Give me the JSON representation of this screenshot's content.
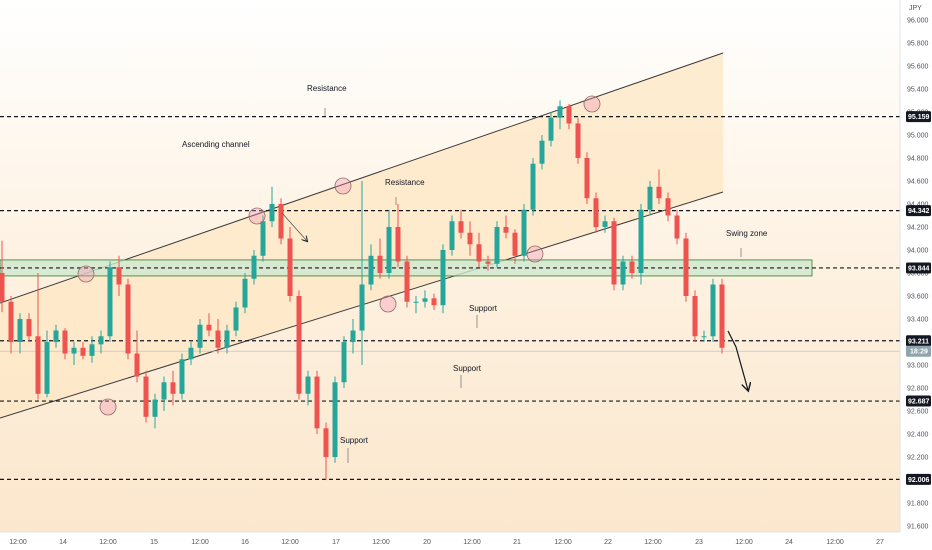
{
  "chart_data": {
    "type": "candlestick",
    "currency": "JPY",
    "ylim": [
      91.5,
      96.1
    ],
    "y_ticks": [
      "96.000",
      "95.800",
      "95.600",
      "95.400",
      "95.200",
      "95.000",
      "94.800",
      "94.600",
      "94.400",
      "94.200",
      "94.000",
      "93.800",
      "93.600",
      "93.400",
      "93.200",
      "93.000",
      "92.800",
      "92.600",
      "92.400",
      "92.200",
      "92.000",
      "91.800",
      "91.600"
    ],
    "x_ticks": [
      "12:00",
      "14",
      "12:00",
      "15",
      "12:00",
      "16",
      "12:00",
      "17",
      "12:00",
      "20",
      "12:00",
      "21",
      "12:00",
      "22",
      "12:00",
      "23",
      "12:00",
      "24",
      "12:00",
      "27"
    ],
    "levels": [
      {
        "value": 95.159,
        "label": "95.159",
        "annotation": "Resistance"
      },
      {
        "value": 94.342,
        "label": "94.342",
        "annotation": "Resistance"
      },
      {
        "value": 93.844,
        "label": "93.844",
        "annotation": "Swing zone"
      },
      {
        "value": 93.211,
        "label": "93.211",
        "annotation": "Support"
      },
      {
        "value": 92.687,
        "label": "92.687",
        "annotation": "Support"
      },
      {
        "value": 92.006,
        "label": "92.006",
        "annotation": "Support"
      }
    ],
    "current_price": {
      "value": 93.12,
      "label": "18:29"
    },
    "channel_annotation": "Ascending channel",
    "colors": {
      "up": "#26a69a",
      "down": "#ef5350",
      "channel_fill": "#fde7c4",
      "zone_fill": "#cfe8cf",
      "zone_stroke": "#2e7d32",
      "label_bg": "#131722",
      "current_bg": "#90a4ae"
    },
    "candles": [
      {
        "o": 93.8,
        "h": 94.08,
        "l": 93.46,
        "c": 93.55
      },
      {
        "o": 93.55,
        "h": 93.6,
        "l": 93.1,
        "c": 93.2
      },
      {
        "o": 93.2,
        "h": 93.45,
        "l": 93.1,
        "c": 93.4
      },
      {
        "o": 93.4,
        "h": 93.45,
        "l": 93.2,
        "c": 93.25
      },
      {
        "o": 93.25,
        "h": 93.8,
        "l": 92.7,
        "c": 92.75
      },
      {
        "o": 92.75,
        "h": 93.3,
        "l": 92.72,
        "c": 93.2
      },
      {
        "o": 93.2,
        "h": 93.35,
        "l": 93.15,
        "c": 93.3
      },
      {
        "o": 93.3,
        "h": 93.32,
        "l": 93.05,
        "c": 93.1
      },
      {
        "o": 93.1,
        "h": 93.2,
        "l": 93.0,
        "c": 93.15
      },
      {
        "o": 93.15,
        "h": 93.2,
        "l": 93.05,
        "c": 93.08
      },
      {
        "o": 93.08,
        "h": 93.25,
        "l": 93.02,
        "c": 93.18
      },
      {
        "o": 93.18,
        "h": 93.3,
        "l": 93.1,
        "c": 93.25
      },
      {
        "o": 93.25,
        "h": 93.9,
        "l": 93.2,
        "c": 93.85
      },
      {
        "o": 93.85,
        "h": 93.95,
        "l": 93.6,
        "c": 93.7
      },
      {
        "o": 93.7,
        "h": 93.75,
        "l": 93.05,
        "c": 93.1
      },
      {
        "o": 93.1,
        "h": 93.3,
        "l": 92.85,
        "c": 92.9
      },
      {
        "o": 92.9,
        "h": 92.95,
        "l": 92.5,
        "c": 92.55
      },
      {
        "o": 92.55,
        "h": 92.75,
        "l": 92.45,
        "c": 92.7
      },
      {
        "o": 92.7,
        "h": 92.9,
        "l": 92.6,
        "c": 92.85
      },
      {
        "o": 92.85,
        "h": 92.95,
        "l": 92.65,
        "c": 92.75
      },
      {
        "o": 92.75,
        "h": 93.1,
        "l": 92.7,
        "c": 93.05
      },
      {
        "o": 93.05,
        "h": 93.2,
        "l": 93.0,
        "c": 93.15
      },
      {
        "o": 93.15,
        "h": 93.4,
        "l": 93.1,
        "c": 93.35
      },
      {
        "o": 93.35,
        "h": 93.45,
        "l": 93.25,
        "c": 93.3
      },
      {
        "o": 93.3,
        "h": 93.4,
        "l": 93.1,
        "c": 93.15
      },
      {
        "o": 93.15,
        "h": 93.35,
        "l": 93.1,
        "c": 93.3
      },
      {
        "o": 93.3,
        "h": 93.55,
        "l": 93.25,
        "c": 93.5
      },
      {
        "o": 93.5,
        "h": 93.8,
        "l": 93.45,
        "c": 93.75
      },
      {
        "o": 93.75,
        "h": 94.0,
        "l": 93.7,
        "c": 93.95
      },
      {
        "o": 93.95,
        "h": 94.3,
        "l": 93.9,
        "c": 94.25
      },
      {
        "o": 94.25,
        "h": 94.55,
        "l": 94.2,
        "c": 94.4
      },
      {
        "o": 94.4,
        "h": 94.45,
        "l": 94.05,
        "c": 94.1
      },
      {
        "o": 94.1,
        "h": 94.2,
        "l": 93.55,
        "c": 93.6
      },
      {
        "o": 93.6,
        "h": 93.65,
        "l": 92.7,
        "c": 92.75
      },
      {
        "o": 92.75,
        "h": 92.95,
        "l": 92.65,
        "c": 92.9
      },
      {
        "o": 92.9,
        "h": 92.95,
        "l": 92.4,
        "c": 92.45
      },
      {
        "o": 92.45,
        "h": 92.5,
        "l": 92.0,
        "c": 92.2
      },
      {
        "o": 92.2,
        "h": 92.9,
        "l": 92.15,
        "c": 92.85
      },
      {
        "o": 92.85,
        "h": 93.25,
        "l": 92.8,
        "c": 93.2
      },
      {
        "o": 93.2,
        "h": 93.4,
        "l": 93.1,
        "c": 93.3
      },
      {
        "o": 93.3,
        "h": 94.6,
        "l": 93.0,
        "c": 93.7
      },
      {
        "o": 93.7,
        "h": 94.05,
        "l": 93.65,
        "c": 93.95
      },
      {
        "o": 93.95,
        "h": 94.1,
        "l": 93.75,
        "c": 93.8
      },
      {
        "o": 93.8,
        "h": 94.35,
        "l": 93.75,
        "c": 94.2
      },
      {
        "o": 94.2,
        "h": 94.4,
        "l": 93.85,
        "c": 93.9
      },
      {
        "o": 93.9,
        "h": 93.95,
        "l": 93.5,
        "c": 93.55
      },
      {
        "o": 93.55,
        "h": 93.6,
        "l": 93.45,
        "c": 93.55
      },
      {
        "o": 93.55,
        "h": 93.65,
        "l": 93.5,
        "c": 93.58
      },
      {
        "o": 93.58,
        "h": 93.62,
        "l": 93.48,
        "c": 93.52
      },
      {
        "o": 93.52,
        "h": 94.05,
        "l": 93.45,
        "c": 94.0
      },
      {
        "o": 94.0,
        "h": 94.3,
        "l": 93.95,
        "c": 94.25
      },
      {
        "o": 94.25,
        "h": 94.35,
        "l": 94.1,
        "c": 94.15
      },
      {
        "o": 94.15,
        "h": 94.25,
        "l": 93.95,
        "c": 94.05
      },
      {
        "o": 94.05,
        "h": 94.15,
        "l": 93.85,
        "c": 93.9
      },
      {
        "o": 93.9,
        "h": 93.95,
        "l": 93.82,
        "c": 93.88
      },
      {
        "o": 93.88,
        "h": 94.25,
        "l": 93.85,
        "c": 94.2
      },
      {
        "o": 94.2,
        "h": 94.3,
        "l": 94.1,
        "c": 94.15
      },
      {
        "o": 94.15,
        "h": 94.18,
        "l": 93.88,
        "c": 93.95
      },
      {
        "o": 93.95,
        "h": 94.4,
        "l": 93.9,
        "c": 94.35
      },
      {
        "o": 94.35,
        "h": 94.8,
        "l": 94.3,
        "c": 94.75
      },
      {
        "o": 94.75,
        "h": 95.0,
        "l": 94.7,
        "c": 94.95
      },
      {
        "o": 94.95,
        "h": 95.2,
        "l": 94.9,
        "c": 95.15
      },
      {
        "o": 95.15,
        "h": 95.3,
        "l": 95.05,
        "c": 95.25
      },
      {
        "o": 95.25,
        "h": 95.27,
        "l": 95.05,
        "c": 95.1
      },
      {
        "o": 95.1,
        "h": 95.15,
        "l": 94.75,
        "c": 94.8
      },
      {
        "o": 94.8,
        "h": 94.85,
        "l": 94.4,
        "c": 94.45
      },
      {
        "o": 94.45,
        "h": 94.5,
        "l": 94.15,
        "c": 94.2
      },
      {
        "o": 94.2,
        "h": 94.3,
        "l": 94.15,
        "c": 94.25
      },
      {
        "o": 94.25,
        "h": 94.28,
        "l": 93.65,
        "c": 93.7
      },
      {
        "o": 93.7,
        "h": 93.95,
        "l": 93.65,
        "c": 93.9
      },
      {
        "o": 93.9,
        "h": 93.95,
        "l": 93.75,
        "c": 93.8
      },
      {
        "o": 93.8,
        "h": 94.4,
        "l": 93.7,
        "c": 94.35
      },
      {
        "o": 94.35,
        "h": 94.6,
        "l": 94.3,
        "c": 94.55
      },
      {
        "o": 94.55,
        "h": 94.7,
        "l": 94.4,
        "c": 94.45
      },
      {
        "o": 94.45,
        "h": 94.5,
        "l": 94.25,
        "c": 94.3
      },
      {
        "o": 94.3,
        "h": 94.35,
        "l": 94.05,
        "c": 94.1
      },
      {
        "o": 94.1,
        "h": 94.15,
        "l": 93.55,
        "c": 93.6
      },
      {
        "o": 93.6,
        "h": 93.65,
        "l": 93.2,
        "c": 93.25
      },
      {
        "o": 93.25,
        "h": 93.3,
        "l": 93.2,
        "c": 93.25
      },
      {
        "o": 93.25,
        "h": 93.75,
        "l": 93.2,
        "c": 93.7
      },
      {
        "o": 93.7,
        "h": 93.75,
        "l": 93.1,
        "c": 93.15
      }
    ]
  }
}
